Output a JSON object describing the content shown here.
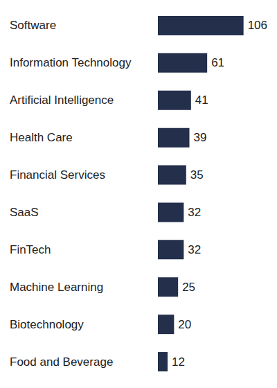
{
  "chart_data": {
    "type": "bar",
    "orientation": "horizontal",
    "categories": [
      "Software",
      "Information Technology",
      "Artificial Intelligence",
      "Health Care",
      "Financial Services",
      "SaaS",
      "FinTech",
      "Machine Learning",
      "Biotechnology",
      "Food and Beverage"
    ],
    "values": [
      106,
      61,
      41,
      39,
      35,
      32,
      32,
      25,
      20,
      12
    ],
    "color": "#232f4b",
    "xlim": [
      0,
      120
    ],
    "grid": false,
    "data_labels": true,
    "tick_labels": "y"
  }
}
